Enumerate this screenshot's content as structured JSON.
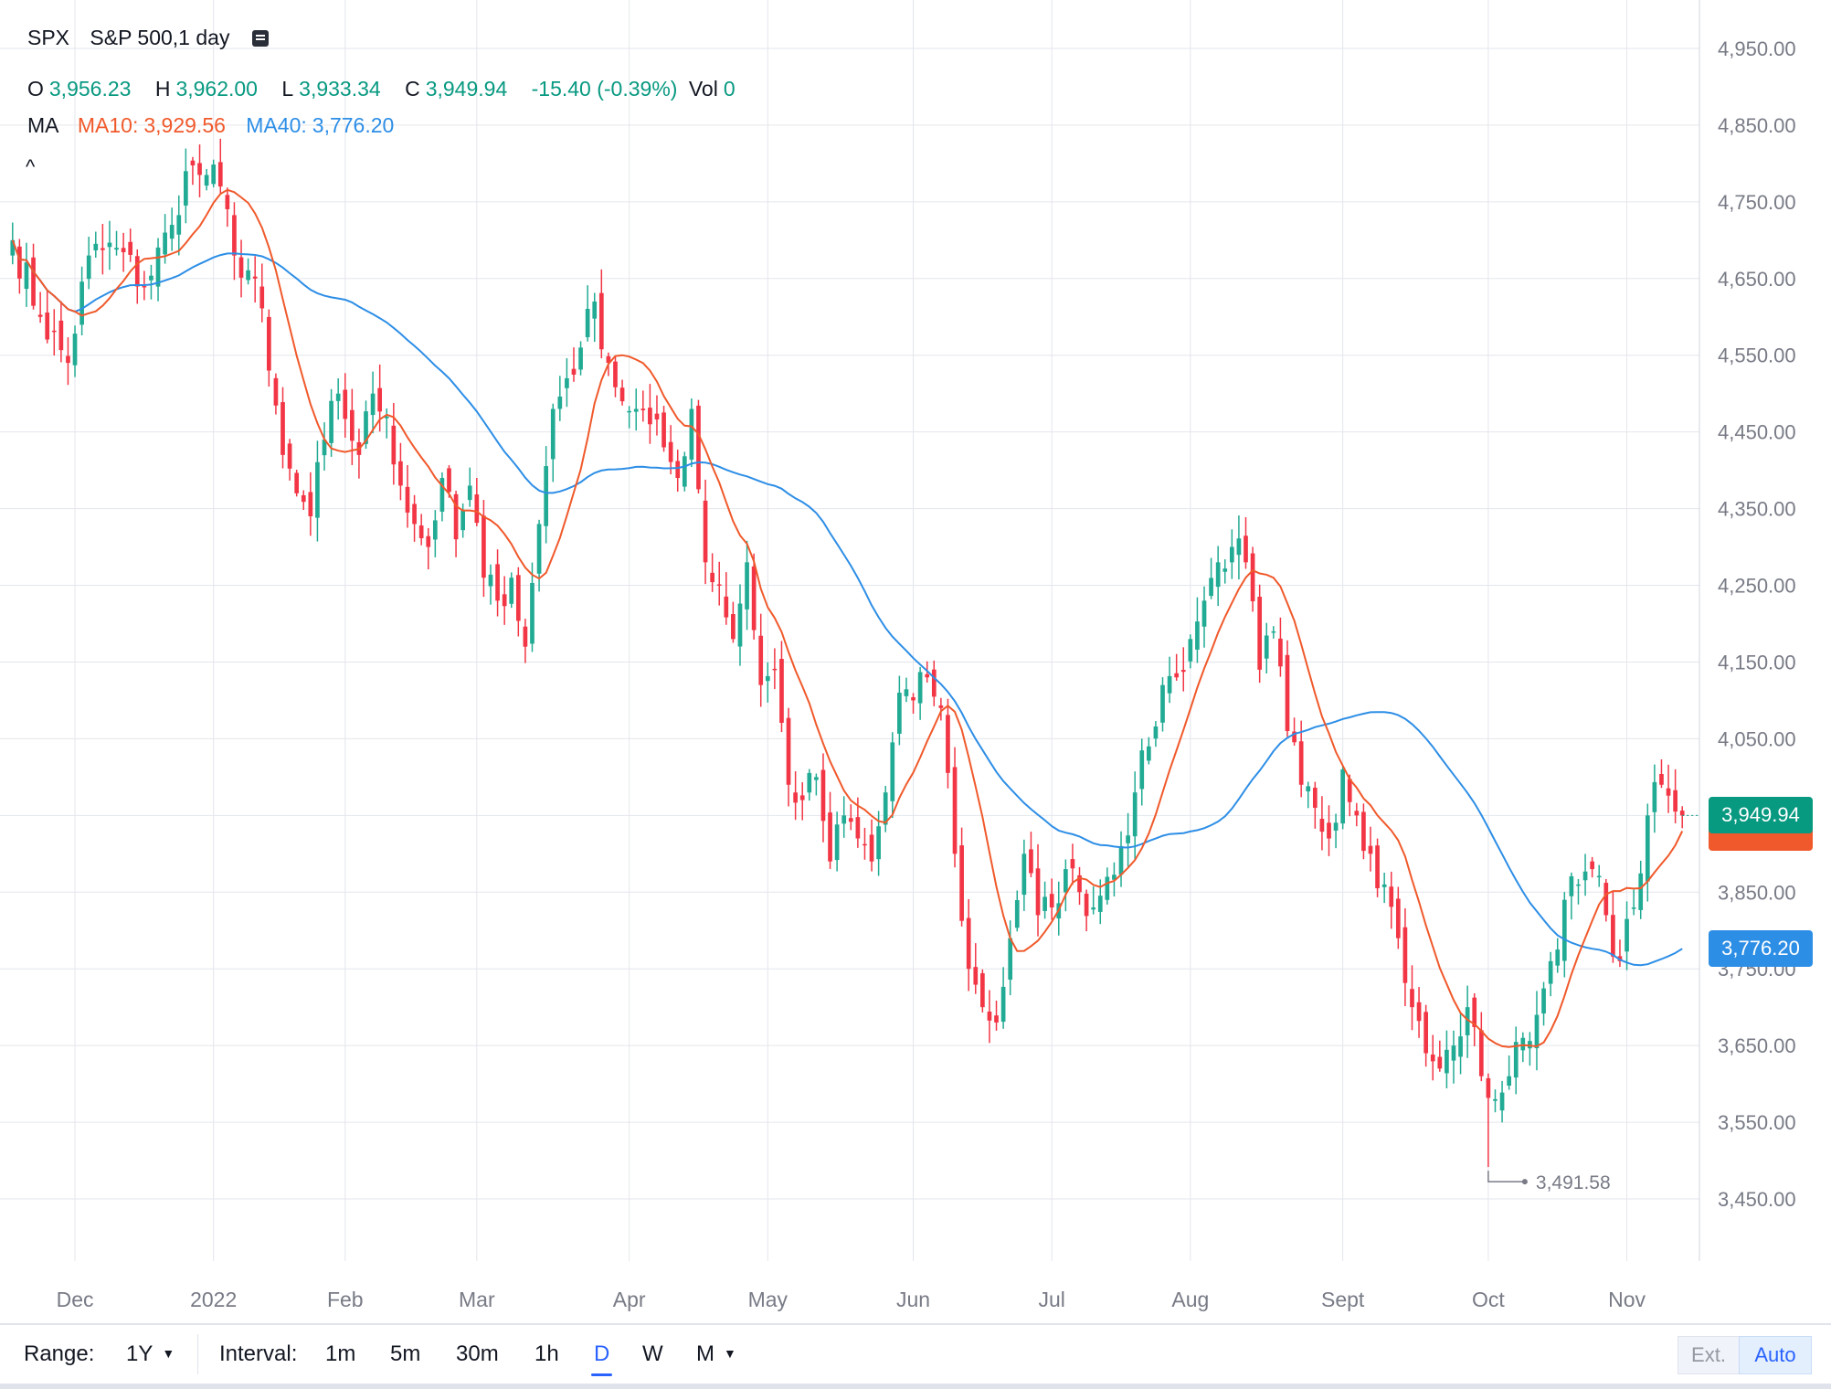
{
  "header": {
    "symbol": "SPX",
    "description": "S&P 500,1 day",
    "ohlc": {
      "o_label": "O",
      "o_value": "3,956.23",
      "h_label": "H",
      "h_value": "3,962.00",
      "l_label": "L",
      "l_value": "3,933.34",
      "c_label": "C",
      "c_value": "3,949.94",
      "change": "-15.40 (-0.39%)",
      "vol_label": "Vol",
      "vol_value": "0"
    },
    "ma": {
      "label": "MA",
      "ma10_label": "MA10:",
      "ma10_value": "3,929.56",
      "ma40_label": "MA40:",
      "ma40_value": "3,776.20"
    },
    "collapse_icon": "^"
  },
  "colors": {
    "up": "#22ab94",
    "down": "#f23645",
    "ma10": "#f0592b",
    "ma40": "#2d8ee6",
    "up_text": "#089981",
    "ma10_text": "#f0592b",
    "ma40_text": "#2d8ee6",
    "grid": "#e3e6ec",
    "axis_text": "#787b86",
    "last_tag": "#089981",
    "ma10_tag": "#f0592b",
    "ma40_tag": "#2d8ee6"
  },
  "chart_data": {
    "type": "candlestick",
    "title": "S&P 500,1 day",
    "ylim": [
      3400,
      5000
    ],
    "y_ticks": [
      4950,
      4850,
      4750,
      4650,
      4550,
      4450,
      4350,
      4250,
      4150,
      4050,
      3950,
      3850,
      3750,
      3650,
      3550,
      3450
    ],
    "y_tick_labels": [
      "4,950.00",
      "4,850.00",
      "4,750.00",
      "4,650.00",
      "4,550.00",
      "4,450.00",
      "4,350.00",
      "4,250.00",
      "4,150.00",
      "4,050.00",
      "3,950.00",
      "3,850.00",
      "3,750.00",
      "3,650.00",
      "3,550.00",
      "3,450.00"
    ],
    "x_ticks": [
      {
        "label": "Dec",
        "index": 9
      },
      {
        "label": "2022",
        "index": 29
      },
      {
        "label": "Feb",
        "index": 48
      },
      {
        "label": "Mar",
        "index": 67
      },
      {
        "label": "Apr",
        "index": 89
      },
      {
        "label": "May",
        "index": 109
      },
      {
        "label": "Jun",
        "index": 130
      },
      {
        "label": "Jul",
        "index": 150
      },
      {
        "label": "Aug",
        "index": 170
      },
      {
        "label": "Sept",
        "index": 192
      },
      {
        "label": "Oct",
        "index": 213
      },
      {
        "label": "Nov",
        "index": 233
      }
    ],
    "series": [
      {
        "name": "SPX",
        "role": "candles"
      },
      {
        "name": "MA10",
        "role": "sma",
        "period": 10
      },
      {
        "name": "MA40",
        "role": "sma",
        "period": 40
      }
    ],
    "anchors_close": [
      [
        0,
        4700
      ],
      [
        4,
        4600
      ],
      [
        8,
        4540
      ],
      [
        11,
        4680
      ],
      [
        15,
        4690
      ],
      [
        19,
        4640
      ],
      [
        23,
        4720
      ],
      [
        25,
        4790
      ],
      [
        28,
        4785
      ],
      [
        30,
        4770
      ],
      [
        32,
        4680
      ],
      [
        35,
        4650
      ],
      [
        37,
        4530
      ],
      [
        39,
        4420
      ],
      [
        41,
        4370
      ],
      [
        43,
        4340
      ],
      [
        45,
        4440
      ],
      [
        47,
        4500
      ],
      [
        50,
        4420
      ],
      [
        52,
        4500
      ],
      [
        54,
        4470
      ],
      [
        56,
        4380
      ],
      [
        58,
        4330
      ],
      [
        60,
        4300
      ],
      [
        62,
        4390
      ],
      [
        64,
        4310
      ],
      [
        66,
        4380
      ],
      [
        68,
        4260
      ],
      [
        70,
        4230
      ],
      [
        72,
        4260
      ],
      [
        74,
        4170
      ],
      [
        76,
        4330
      ],
      [
        78,
        4480
      ],
      [
        80,
        4520
      ],
      [
        82,
        4560
      ],
      [
        84,
        4620
      ],
      [
        86,
        4540
      ],
      [
        88,
        4490
      ],
      [
        90,
        4480
      ],
      [
        92,
        4460
      ],
      [
        94,
        4430
      ],
      [
        96,
        4390
      ],
      [
        98,
        4480
      ],
      [
        100,
        4280
      ],
      [
        102,
        4250
      ],
      [
        104,
        4180
      ],
      [
        106,
        4280
      ],
      [
        108,
        4120
      ],
      [
        110,
        4140
      ],
      [
        112,
        3990
      ],
      [
        114,
        3970
      ],
      [
        116,
        4000
      ],
      [
        118,
        3890
      ],
      [
        120,
        3950
      ],
      [
        122,
        3920
      ],
      [
        124,
        3890
      ],
      [
        126,
        3980
      ],
      [
        128,
        4110
      ],
      [
        130,
        4100
      ],
      [
        132,
        4130
      ],
      [
        134,
        4090
      ],
      [
        136,
        3900
      ],
      [
        138,
        3750
      ],
      [
        140,
        3700
      ],
      [
        142,
        3680
      ],
      [
        144,
        3790
      ],
      [
        146,
        3900
      ],
      [
        148,
        3820
      ],
      [
        150,
        3830
      ],
      [
        152,
        3880
      ],
      [
        154,
        3850
      ],
      [
        156,
        3830
      ],
      [
        158,
        3870
      ],
      [
        160,
        3910
      ],
      [
        162,
        3980
      ],
      [
        164,
        4040
      ],
      [
        166,
        4120
      ],
      [
        168,
        4130
      ],
      [
        170,
        4180
      ],
      [
        172,
        4230
      ],
      [
        174,
        4280
      ],
      [
        176,
        4300
      ],
      [
        178,
        4280
      ],
      [
        180,
        4140
      ],
      [
        182,
        4190
      ],
      [
        184,
        4060
      ],
      [
        186,
        3990
      ],
      [
        188,
        3960
      ],
      [
        190,
        3920
      ],
      [
        192,
        4010
      ],
      [
        194,
        3950
      ],
      [
        196,
        3900
      ],
      [
        198,
        3860
      ],
      [
        200,
        3790
      ],
      [
        202,
        3700
      ],
      [
        204,
        3640
      ],
      [
        206,
        3620
      ],
      [
        208,
        3650
      ],
      [
        210,
        3700
      ],
      [
        212,
        3610
      ],
      [
        214,
        3580
      ],
      [
        216,
        3610
      ],
      [
        218,
        3660
      ],
      [
        220,
        3690
      ],
      [
        222,
        3760
      ],
      [
        224,
        3840
      ],
      [
        226,
        3860
      ],
      [
        228,
        3880
      ],
      [
        230,
        3820
      ],
      [
        232,
        3760
      ],
      [
        234,
        3830
      ],
      [
        236,
        3950
      ],
      [
        238,
        3990
      ],
      [
        240,
        3955
      ],
      [
        241,
        3949.94
      ]
    ],
    "last_candle": {
      "open": 3956.23,
      "high": 3962.0,
      "low": 3933.34,
      "close": 3949.94,
      "change": -15.4,
      "change_pct": -0.39,
      "volume": 0
    },
    "ma10_last": 3929.56,
    "ma40_last": 3776.2,
    "low_marker": {
      "index": 213,
      "value": 3491.58,
      "label": "3,491.58"
    },
    "last_price_label": "3,949.94",
    "ma40_price_label": "3,776.20"
  },
  "toolbar": {
    "range_label": "Range:",
    "range_value": "1Y",
    "interval_label": "Interval:",
    "intervals": [
      "1m",
      "5m",
      "30m",
      "1h",
      "D",
      "W",
      "M"
    ],
    "active_interval": "D",
    "ext_label": "Ext.",
    "auto_label": "Auto"
  }
}
